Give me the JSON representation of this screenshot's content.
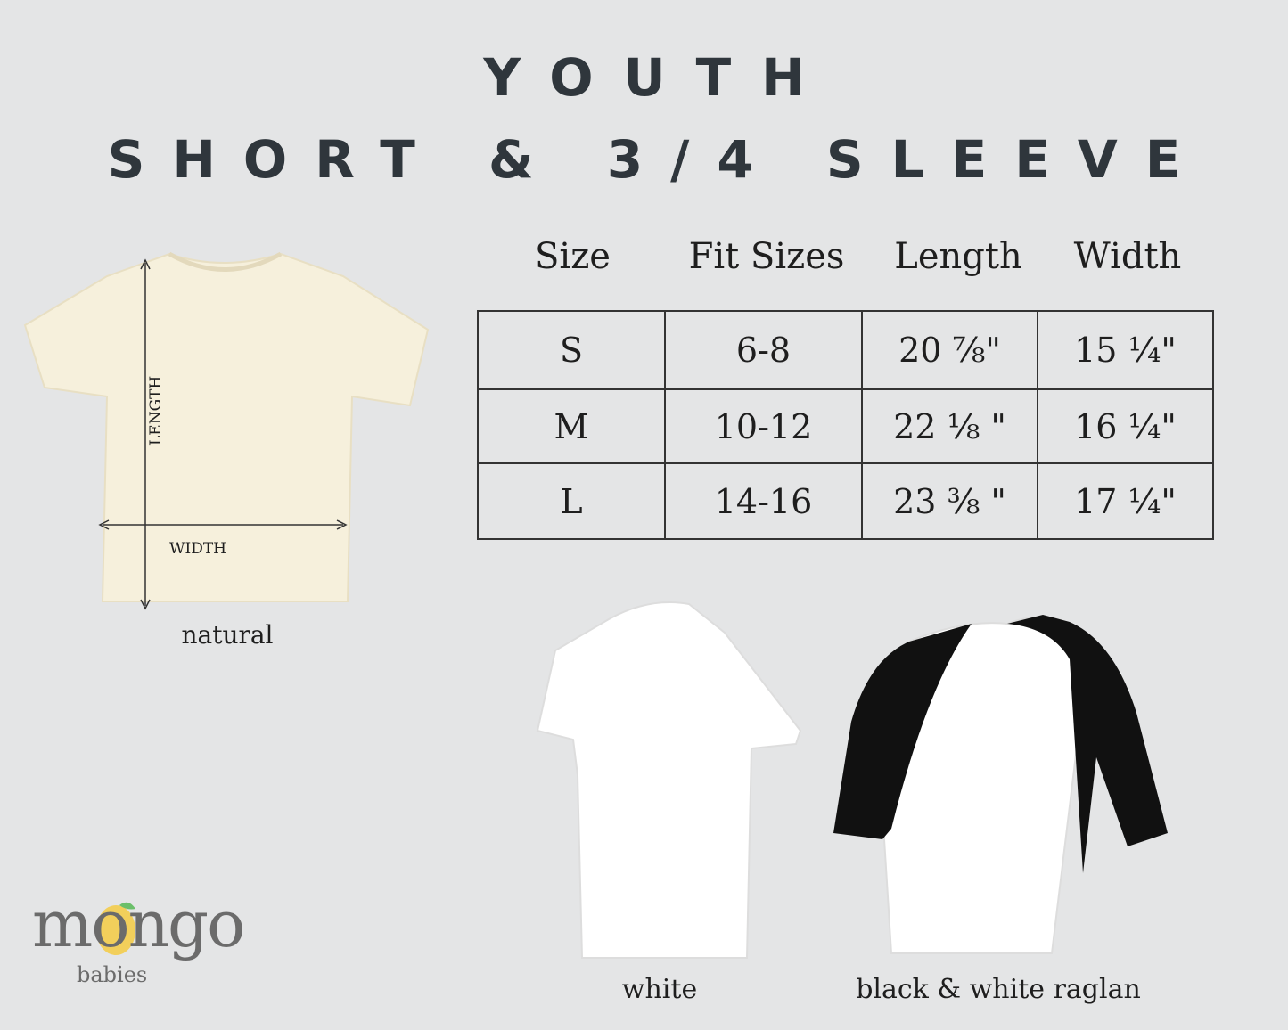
{
  "title": {
    "line1": "YOUTH",
    "line2": "SHORT & 3/4 SLEEVE"
  },
  "table": {
    "headers": [
      "Size",
      "Fit Sizes",
      "Length",
      "Width"
    ],
    "rows": [
      [
        "S",
        "6-8",
        "20 ⅞\"",
        "15 ¼\""
      ],
      [
        "M",
        "10-12",
        "22 ⅛ \"",
        "16 ¼\""
      ],
      [
        "L",
        "14-16",
        "23 ⅜ \"",
        "17 ¼\""
      ]
    ]
  },
  "diagram": {
    "length_label": "LENGTH",
    "width_label": "WIDTH"
  },
  "products": [
    {
      "label": "natural",
      "color": "#f6f0dc"
    },
    {
      "label": "white",
      "color": "#ffffff"
    },
    {
      "label": "black & white raglan",
      "color": "#111111"
    }
  ],
  "logo": {
    "main": "mongo",
    "sub": "babies"
  },
  "colors": {
    "background": "#e4e5e6",
    "title": "#2f363c"
  }
}
